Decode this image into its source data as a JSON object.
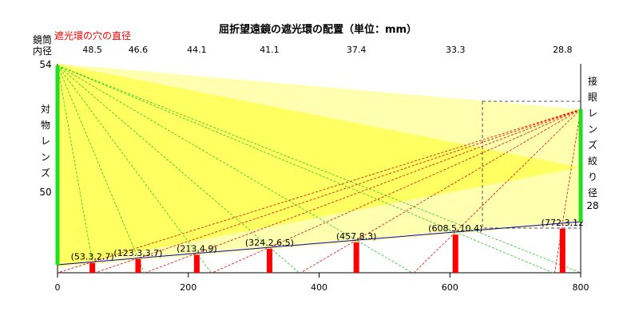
{
  "title": "屈折望遠鏡の遮光環の配置（単位：mm）",
  "left_labels": {
    "tube_top": "鏡筒",
    "tube_bottom": "内径",
    "tube_value": "54",
    "objective": "対物レンズ",
    "objective_value": "50"
  },
  "right_labels": {
    "eyepiece": "接眼レンズ絞り径",
    "eyepiece_value": "28"
  },
  "hole_header": "遮光環の穴の直径",
  "colors": {
    "yellow": "#ffff00",
    "light_yellow": "#ffffb0",
    "green": "#22dd22",
    "red": "#ff0000",
    "blue": "#0000cc",
    "dashed_gray": "#555555"
  },
  "chart_data": {
    "type": "diagram",
    "x_range": [
      0,
      800
    ],
    "x_ticks": [
      "0",
      "200",
      "400",
      "600",
      "800"
    ],
    "baffles": [
      {
        "label": "(53.3,2.7)",
        "x": 53.3,
        "height": 2.7,
        "hole": "48.5"
      },
      {
        "label": "(123.3,3.7)",
        "x": 123.3,
        "height": 3.7,
        "hole": "46.6"
      },
      {
        "label": "(213,4.9)",
        "x": 213,
        "height": 4.9,
        "hole": "44.1"
      },
      {
        "label": "(324.2,6.5)",
        "x": 324.2,
        "height": 6.5,
        "hole": "41.1"
      },
      {
        "label": "(457,8.3)",
        "x": 457,
        "height": 8.3,
        "hole": "37.4"
      },
      {
        "label": "(608.5,10.4)",
        "x": 608.5,
        "height": 10.4,
        "hole": "33.3"
      },
      {
        "label": "(772.3,12",
        "x": 772.3,
        "height": 12,
        "hole": "28.8"
      }
    ]
  }
}
